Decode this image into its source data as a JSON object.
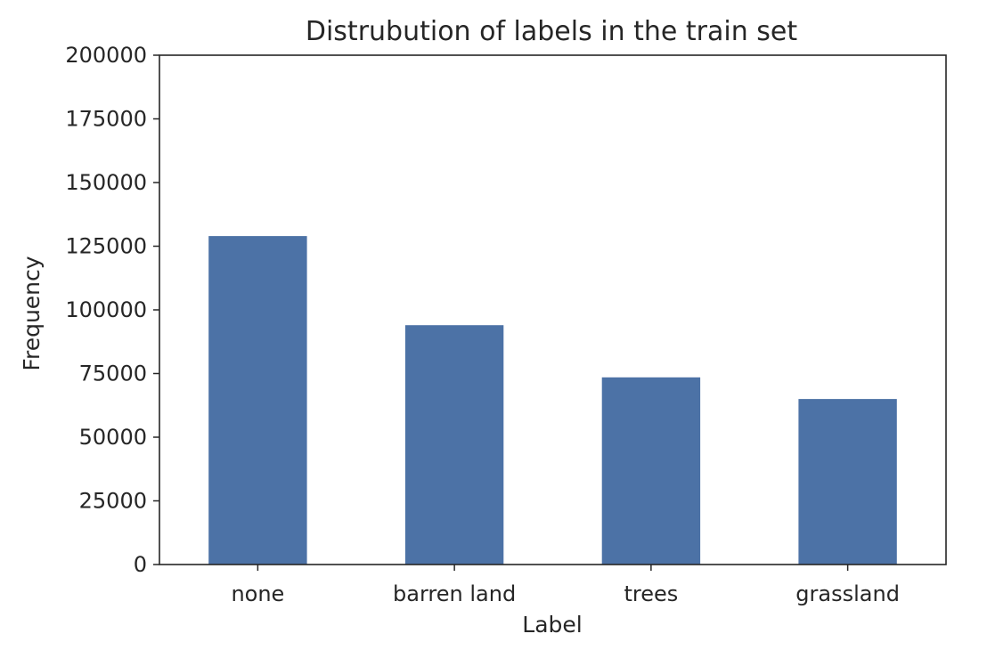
{
  "chart_data": {
    "type": "bar",
    "title": "Distrubution of labels in the train set",
    "xlabel": "Label",
    "ylabel": "Frequency",
    "categories": [
      "none",
      "barren land",
      "trees",
      "grassland"
    ],
    "values": [
      129000,
      94000,
      73500,
      65000
    ],
    "ylim": [
      0,
      200000
    ],
    "yticks": [
      0,
      25000,
      50000,
      75000,
      100000,
      125000,
      150000,
      175000,
      200000
    ],
    "grid": false,
    "bar_color": "#4c72a6",
    "axis_color": "#262626"
  }
}
